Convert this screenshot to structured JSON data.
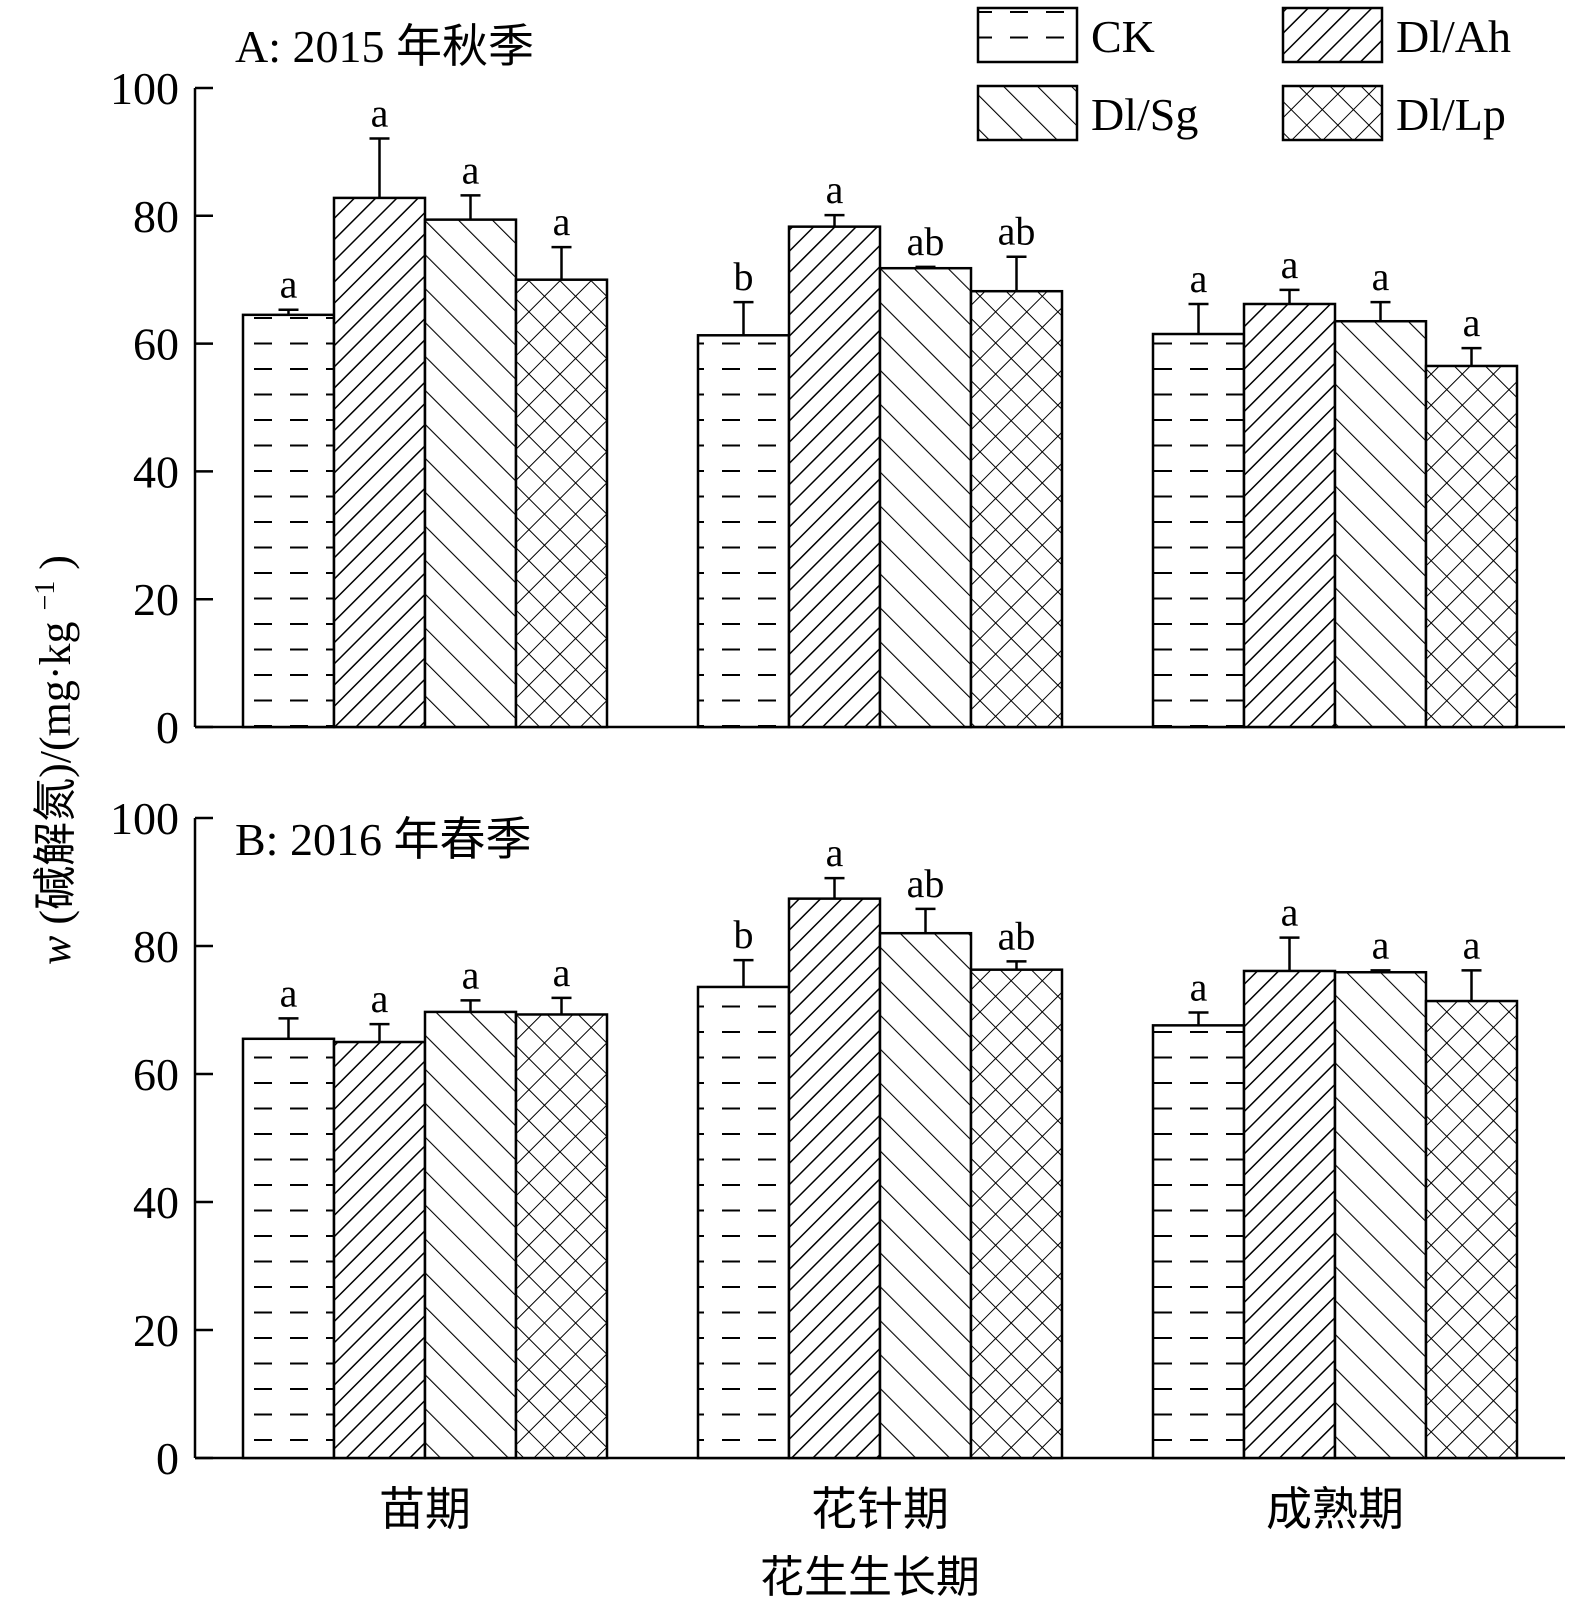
{
  "chart_data": {
    "type": "bar",
    "categories": [
      "苗期",
      "花针期",
      "成熟期"
    ],
    "xlabel": "花生生长期",
    "ylabel_main": "w",
    "ylabel_rest": "(碱解氮)/(mg·kg",
    "ylabel_sup": "−1",
    "ylabel_end": ")",
    "ylim": [
      0,
      100
    ],
    "yticks": [
      0,
      20,
      40,
      60,
      80,
      100
    ],
    "legend": [
      {
        "name": "CK",
        "pattern": "dash"
      },
      {
        "name": "Dl/Ah",
        "pattern": "diag-right"
      },
      {
        "name": "Dl/Sg",
        "pattern": "diag-left"
      },
      {
        "name": "Dl/Lp",
        "pattern": "cross"
      }
    ],
    "panels": [
      {
        "title": "A: 2015 年秋季",
        "series": [
          {
            "name": "CK",
            "values": [
              64.5,
              61.3,
              61.5
            ],
            "errors": [
              0.8,
              5.2,
              4.7
            ],
            "letters": [
              "a",
              "b",
              "a"
            ]
          },
          {
            "name": "Dl/Ah",
            "values": [
              82.8,
              78.3,
              66.2
            ],
            "errors": [
              9.3,
              1.8,
              2.2
            ],
            "letters": [
              "a",
              "a",
              "a"
            ]
          },
          {
            "name": "Dl/Sg",
            "values": [
              79.4,
              71.8,
              63.5
            ],
            "errors": [
              3.8,
              0.2,
              3.0
            ],
            "letters": [
              "a",
              "ab",
              "a"
            ]
          },
          {
            "name": "Dl/Lp",
            "values": [
              70.0,
              68.2,
              56.5
            ],
            "errors": [
              5.1,
              5.4,
              2.8
            ],
            "letters": [
              "a",
              "ab",
              "a"
            ]
          }
        ]
      },
      {
        "title": "B: 2016 年春季",
        "series": [
          {
            "name": "CK",
            "values": [
              65.5,
              73.6,
              67.6
            ],
            "errors": [
              3.2,
              4.2,
              2.0
            ],
            "letters": [
              "a",
              "b",
              "a"
            ]
          },
          {
            "name": "Dl/Ah",
            "values": [
              65.0,
              87.4,
              76.1
            ],
            "errors": [
              2.8,
              3.2,
              5.2
            ],
            "letters": [
              "a",
              "a",
              "a"
            ]
          },
          {
            "name": "Dl/Sg",
            "values": [
              69.7,
              82.0,
              75.9
            ],
            "errors": [
              1.8,
              3.8,
              0.3
            ],
            "letters": [
              "a",
              "ab",
              "a"
            ]
          },
          {
            "name": "Dl/Lp",
            "values": [
              69.3,
              76.3,
              71.4
            ],
            "errors": [
              2.6,
              1.3,
              4.8
            ],
            "letters": [
              "a",
              "ab",
              "a"
            ]
          }
        ]
      }
    ]
  }
}
